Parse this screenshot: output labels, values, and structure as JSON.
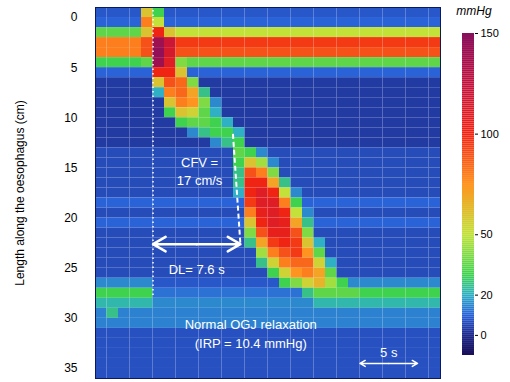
{
  "chart_data": {
    "type": "heatmap",
    "y_label": "Length along the oesophagus (cm)",
    "xlim": [
      0,
      30
    ],
    "ylim": [
      -1,
      36
    ],
    "yticks": [
      0,
      5,
      10,
      15,
      20,
      25,
      30,
      35
    ],
    "tick_labels": "y",
    "heatmap": {
      "x_edges": [
        0,
        1,
        2,
        3,
        4,
        5,
        6,
        7,
        8,
        9,
        10,
        11,
        12,
        13,
        14,
        15,
        16,
        17,
        18,
        19,
        20,
        21,
        22,
        23,
        24,
        25,
        26,
        27,
        28,
        29,
        30
      ],
      "y_edges": [
        -1,
        0,
        1,
        2,
        3,
        4,
        5,
        6,
        7,
        8,
        9,
        10,
        11,
        12,
        13,
        14,
        15,
        16,
        17,
        18,
        19,
        20,
        21,
        22,
        23,
        24,
        25,
        26,
        27,
        28,
        29,
        30,
        31,
        32,
        33,
        34,
        35,
        36
      ],
      "values": [
        [
          8,
          8,
          8,
          8,
          60,
          30,
          8,
          8,
          8,
          8,
          8,
          8,
          8,
          8,
          8,
          8,
          8,
          8,
          8,
          8,
          8,
          8,
          8,
          8,
          8,
          8,
          8,
          8,
          8,
          8
        ],
        [
          10,
          10,
          10,
          10,
          80,
          50,
          10,
          10,
          10,
          10,
          10,
          10,
          10,
          10,
          10,
          10,
          10,
          10,
          10,
          10,
          10,
          10,
          10,
          10,
          10,
          10,
          10,
          10,
          10,
          10
        ],
        [
          35,
          35,
          35,
          35,
          60,
          100,
          60,
          50,
          50,
          50,
          50,
          50,
          50,
          50,
          50,
          50,
          50,
          50,
          50,
          50,
          50,
          50,
          50,
          50,
          50,
          50,
          50,
          50,
          50,
          50
        ],
        [
          80,
          80,
          80,
          80,
          90,
          140,
          120,
          95,
          95,
          95,
          95,
          95,
          95,
          95,
          95,
          95,
          95,
          95,
          95,
          95,
          95,
          95,
          95,
          95,
          95,
          95,
          95,
          95,
          95,
          95
        ],
        [
          80,
          80,
          80,
          80,
          90,
          145,
          115,
          90,
          90,
          90,
          90,
          90,
          90,
          90,
          90,
          90,
          90,
          90,
          90,
          90,
          90,
          90,
          90,
          90,
          90,
          90,
          90,
          90,
          90,
          90
        ],
        [
          30,
          30,
          30,
          30,
          35,
          140,
          110,
          40,
          35,
          35,
          35,
          35,
          35,
          35,
          35,
          35,
          35,
          35,
          35,
          35,
          35,
          35,
          35,
          35,
          35,
          35,
          35,
          35,
          35,
          35
        ],
        [
          10,
          10,
          10,
          10,
          10,
          100,
          100,
          60,
          10,
          10,
          10,
          10,
          10,
          10,
          10,
          10,
          10,
          10,
          10,
          10,
          10,
          10,
          10,
          10,
          10,
          10,
          10,
          10,
          10,
          10
        ],
        [
          3,
          3,
          3,
          3,
          3,
          60,
          90,
          85,
          40,
          3,
          3,
          3,
          3,
          3,
          3,
          3,
          3,
          3,
          3,
          3,
          3,
          3,
          3,
          3,
          3,
          3,
          3,
          3,
          3,
          3
        ],
        [
          3,
          3,
          3,
          3,
          3,
          20,
          80,
          85,
          70,
          25,
          3,
          3,
          3,
          3,
          3,
          3,
          3,
          3,
          3,
          3,
          3,
          3,
          3,
          3,
          3,
          3,
          3,
          3,
          3,
          3
        ],
        [
          3,
          3,
          3,
          3,
          3,
          3,
          60,
          80,
          75,
          40,
          15,
          3,
          3,
          3,
          3,
          3,
          3,
          3,
          3,
          3,
          3,
          3,
          3,
          3,
          3,
          3,
          3,
          3,
          3,
          3
        ],
        [
          3,
          3,
          3,
          3,
          3,
          3,
          30,
          60,
          55,
          35,
          20,
          3,
          3,
          3,
          3,
          3,
          3,
          3,
          3,
          3,
          3,
          3,
          3,
          3,
          3,
          3,
          3,
          3,
          3,
          3
        ],
        [
          3,
          3,
          3,
          3,
          3,
          3,
          3,
          30,
          35,
          35,
          30,
          20,
          3,
          3,
          3,
          3,
          3,
          3,
          3,
          3,
          3,
          3,
          3,
          3,
          3,
          3,
          3,
          3,
          3,
          3
        ],
        [
          3,
          3,
          3,
          3,
          3,
          3,
          3,
          3,
          15,
          25,
          30,
          30,
          20,
          3,
          3,
          3,
          3,
          3,
          3,
          3,
          3,
          3,
          3,
          3,
          3,
          3,
          3,
          3,
          3,
          3
        ],
        [
          3,
          3,
          3,
          3,
          3,
          3,
          3,
          3,
          3,
          3,
          15,
          25,
          30,
          3,
          3,
          3,
          3,
          3,
          3,
          3,
          3,
          3,
          3,
          3,
          3,
          3,
          3,
          3,
          3,
          3
        ],
        [
          6,
          6,
          6,
          6,
          6,
          6,
          6,
          6,
          6,
          6,
          6,
          6,
          35,
          30,
          15,
          6,
          6,
          6,
          6,
          6,
          6,
          6,
          6,
          6,
          6,
          6,
          6,
          6,
          6,
          6
        ],
        [
          6,
          6,
          6,
          6,
          6,
          6,
          6,
          6,
          6,
          6,
          6,
          6,
          30,
          60,
          45,
          15,
          6,
          6,
          6,
          6,
          6,
          6,
          6,
          6,
          6,
          6,
          6,
          6,
          6,
          6
        ],
        [
          6,
          6,
          6,
          6,
          6,
          6,
          6,
          6,
          6,
          6,
          6,
          6,
          25,
          90,
          80,
          40,
          6,
          6,
          6,
          6,
          6,
          6,
          6,
          6,
          6,
          6,
          6,
          6,
          6,
          6
        ],
        [
          6,
          6,
          6,
          6,
          6,
          6,
          6,
          6,
          6,
          6,
          6,
          6,
          25,
          100,
          100,
          70,
          25,
          6,
          6,
          6,
          6,
          6,
          6,
          6,
          6,
          6,
          6,
          6,
          6,
          6
        ],
        [
          6,
          6,
          6,
          6,
          6,
          6,
          6,
          6,
          6,
          6,
          6,
          6,
          20,
          100,
          110,
          100,
          50,
          15,
          6,
          6,
          6,
          6,
          6,
          6,
          6,
          6,
          6,
          6,
          6,
          6
        ],
        [
          10,
          10,
          10,
          10,
          10,
          10,
          10,
          10,
          10,
          10,
          10,
          10,
          10,
          95,
          110,
          110,
          80,
          30,
          10,
          10,
          10,
          10,
          10,
          10,
          10,
          10,
          10,
          10,
          10,
          10
        ],
        [
          6,
          6,
          6,
          6,
          6,
          6,
          6,
          6,
          6,
          6,
          6,
          6,
          6,
          80,
          105,
          110,
          100,
          50,
          15,
          6,
          6,
          6,
          6,
          6,
          6,
          6,
          6,
          6,
          6,
          6
        ],
        [
          10,
          10,
          10,
          10,
          10,
          10,
          10,
          10,
          10,
          10,
          10,
          10,
          10,
          60,
          100,
          110,
          105,
          70,
          25,
          10,
          10,
          10,
          10,
          10,
          10,
          10,
          10,
          10,
          10,
          10
        ],
        [
          6,
          6,
          6,
          6,
          6,
          6,
          6,
          6,
          6,
          6,
          6,
          6,
          6,
          40,
          90,
          105,
          105,
          90,
          40,
          6,
          6,
          6,
          6,
          6,
          6,
          6,
          6,
          6,
          6,
          6
        ],
        [
          6,
          6,
          6,
          6,
          6,
          6,
          6,
          6,
          6,
          6,
          6,
          6,
          6,
          25,
          70,
          95,
          100,
          95,
          60,
          20,
          6,
          6,
          6,
          6,
          6,
          6,
          6,
          6,
          6,
          6
        ],
        [
          6,
          6,
          6,
          6,
          6,
          6,
          6,
          6,
          6,
          6,
          6,
          6,
          6,
          6,
          45,
          80,
          90,
          95,
          75,
          35,
          6,
          6,
          6,
          6,
          6,
          6,
          6,
          6,
          6,
          6
        ],
        [
          6,
          6,
          6,
          6,
          6,
          6,
          6,
          6,
          6,
          6,
          6,
          6,
          6,
          6,
          25,
          55,
          80,
          85,
          85,
          55,
          20,
          6,
          6,
          6,
          6,
          6,
          6,
          6,
          6,
          6
        ],
        [
          6,
          6,
          6,
          6,
          6,
          6,
          6,
          6,
          6,
          6,
          6,
          6,
          6,
          6,
          6,
          30,
          55,
          75,
          80,
          70,
          35,
          6,
          6,
          6,
          6,
          6,
          6,
          6,
          6,
          6
        ],
        [
          15,
          15,
          15,
          15,
          15,
          8,
          8,
          8,
          8,
          8,
          8,
          8,
          8,
          8,
          8,
          8,
          30,
          40,
          55,
          65,
          45,
          30,
          15,
          15,
          15,
          15,
          15,
          15,
          15,
          15
        ],
        [
          30,
          30,
          30,
          30,
          30,
          12,
          12,
          12,
          12,
          12,
          12,
          12,
          12,
          12,
          12,
          12,
          12,
          12,
          25,
          35,
          35,
          35,
          35,
          30,
          30,
          30,
          30,
          30,
          30,
          30
        ],
        [
          22,
          22,
          22,
          22,
          22,
          15,
          15,
          15,
          15,
          15,
          15,
          15,
          15,
          15,
          15,
          15,
          15,
          15,
          15,
          22,
          22,
          22,
          22,
          22,
          22,
          22,
          22,
          22,
          22,
          22
        ],
        [
          14,
          25,
          14,
          14,
          14,
          14,
          14,
          14,
          14,
          14,
          14,
          14,
          14,
          14,
          14,
          14,
          14,
          14,
          14,
          14,
          14,
          14,
          14,
          14,
          14,
          14,
          14,
          14,
          14,
          14
        ],
        [
          14,
          14,
          14,
          14,
          14,
          14,
          14,
          14,
          14,
          14,
          14,
          14,
          14,
          14,
          14,
          14,
          14,
          14,
          14,
          14,
          14,
          14,
          14,
          14,
          14,
          14,
          14,
          14,
          14,
          14
        ],
        [
          7,
          7,
          7,
          7,
          7,
          7,
          7,
          7,
          7,
          7,
          7,
          7,
          7,
          7,
          7,
          7,
          7,
          7,
          7,
          7,
          7,
          7,
          7,
          7,
          7,
          7,
          7,
          7,
          7,
          7
        ],
        [
          7,
          7,
          7,
          7,
          7,
          7,
          7,
          7,
          7,
          7,
          7,
          7,
          7,
          7,
          7,
          7,
          7,
          7,
          7,
          7,
          7,
          7,
          7,
          7,
          7,
          7,
          7,
          7,
          7,
          7
        ],
        [
          7,
          7,
          7,
          7,
          7,
          7,
          7,
          7,
          7,
          7,
          7,
          7,
          7,
          7,
          7,
          7,
          7,
          7,
          7,
          7,
          7,
          7,
          7,
          7,
          7,
          7,
          7,
          7,
          7,
          7
        ],
        [
          7,
          7,
          7,
          7,
          7,
          7,
          7,
          7,
          7,
          7,
          7,
          7,
          7,
          7,
          7,
          7,
          7,
          7,
          7,
          7,
          7,
          7,
          7,
          7,
          7,
          7,
          7,
          7,
          7,
          7
        ],
        [
          7,
          7,
          7,
          7,
          7,
          7,
          7,
          7,
          7,
          7,
          7,
          7,
          7,
          7,
          7,
          7,
          7,
          7,
          7,
          7,
          7,
          7,
          7,
          7,
          7,
          7,
          7,
          7,
          7,
          7
        ]
      ]
    },
    "colorbar": {
      "label": "mmHg",
      "range": [
        -10,
        150
      ],
      "ticks": [
        0,
        20,
        50,
        100,
        150
      ],
      "stops": [
        -10,
        0,
        10,
        20,
        30,
        50,
        75,
        100,
        125,
        150
      ],
      "colors": [
        "#1a0f55",
        "#1f2a8c",
        "#2a62d8",
        "#2fb0c4",
        "#3ed24e",
        "#c2e23a",
        "#ff9420",
        "#f02412",
        "#c2123e",
        "#86105e"
      ]
    },
    "annotations": {
      "swallow_onset": 5,
      "distal_latency": {
        "value": 7.6,
        "label": "DL= 7.6 s"
      },
      "cfv": {
        "value": 17,
        "label": "CFV =\n17 cm/s"
      },
      "irp_text": "Normal OGJ relaxation\n(IRP = 10.4 mmHg)",
      "scale_bar": {
        "value": 5,
        "label": "5 s"
      }
    }
  }
}
